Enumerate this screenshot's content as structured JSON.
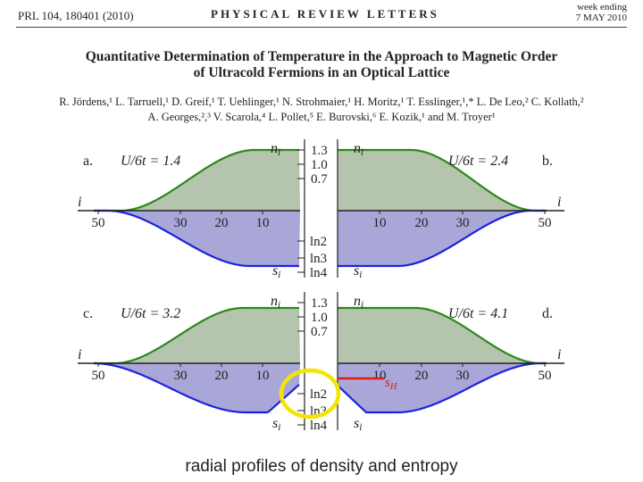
{
  "header": {
    "journal": "PRL 104, 180401 (2010)",
    "journal_name": "PHYSICAL REVIEW LETTERS",
    "date_line1": "week ending",
    "date_line2": "7 MAY 2010"
  },
  "paper": {
    "title_line1": "Quantitative Determination of Temperature in the Approach to Magnetic Order",
    "title_line2": "of Ultracold Fermions in an Optical Lattice",
    "authors_line1": "R. Jördens,¹ L. Tarruell,¹ D. Greif,¹ T. Uehlinger,¹ N. Strohmaier,¹ H. Moritz,¹ T. Esslinger,¹,* L. De Leo,² C. Kollath,²",
    "authors_line2": "A. Georges,²,³ V. Scarola,⁴ L. Pollet,⁵ E. Burovski,⁶ E. Kozik,¹ and M. Troyer¹"
  },
  "figure": {
    "panel_labels": [
      "a.",
      "b.",
      "c.",
      "d."
    ],
    "panel_params": [
      "U/6t = 1.4",
      "U/6t = 2.4",
      "U/6t = 3.2",
      "U/6t = 4.1"
    ],
    "density_axis_label": "n",
    "density_axis_sub": "i",
    "entropy_axis_label": "s",
    "entropy_axis_sub": "i",
    "site_axis_label": "i",
    "density_ticks": [
      "1.3",
      "1.0",
      "0.7"
    ],
    "entropy_ticks": [
      "ln2",
      "ln3",
      "ln4"
    ],
    "left_ticks": [
      "50",
      "30",
      "20",
      "10"
    ],
    "right_ticks": [
      "10",
      "20",
      "30",
      "50"
    ],
    "annotation_label": "s",
    "annotation_sub": "H",
    "colors": {
      "density_fill": "#b5c5ad",
      "density_line": "#2a8a1a",
      "entropy_fill": "#a9a7d8",
      "entropy_line": "#1c22e0",
      "annotation": "#e01a1a",
      "highlight": "#f2e600"
    }
  },
  "caption": "radial profiles of density and entropy"
}
